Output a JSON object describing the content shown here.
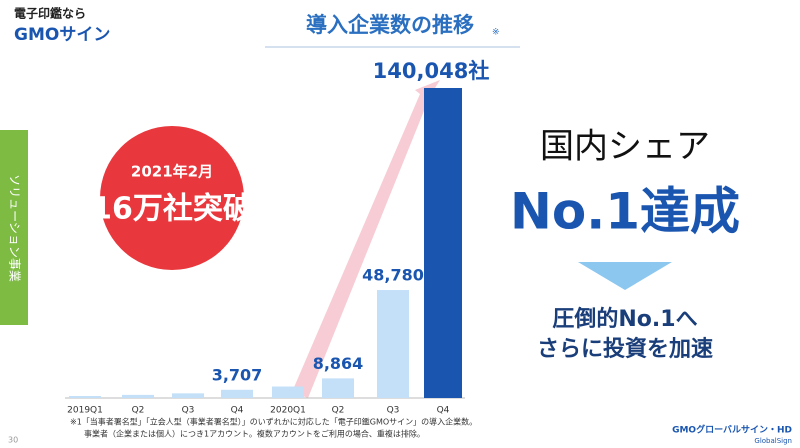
{
  "header": {
    "tagline": "電子印鑑なら",
    "logo": "GMOサイン"
  },
  "side_tab": "ソリューション事業",
  "badge": {
    "date": "2021年2月",
    "headline": "16万社突破"
  },
  "message": {
    "line1": "国内シェア",
    "line2": "No.1達成",
    "line3": "圧倒的No.1へ",
    "line4": "さらに投資を加速"
  },
  "chart_data": {
    "type": "bar",
    "title": "導入企業数の推移",
    "title_note": "※",
    "categories": [
      "2019Q1",
      "Q2",
      "Q3",
      "Q4",
      "2020Q1",
      "Q2",
      "Q3",
      "Q4"
    ],
    "values": [
      900,
      1400,
      2100,
      3707,
      5200,
      8864,
      48780,
      140048
    ],
    "value_labels": [
      null,
      null,
      null,
      "3,707",
      null,
      "8,864",
      "48,780",
      "140,048社"
    ],
    "colors": [
      "#c4e0f8",
      "#c4e0f8",
      "#c4e0f8",
      "#c4e0f8",
      "#c4e0f8",
      "#c4e0f8",
      "#c4e0f8",
      "#1a56b0"
    ]
  },
  "footnotes": [
    "※1「当事者署名型」「立会人型（事業者署名型）」のいずれかに対応した「電子印鑑GMOサイン」の導入企業数。",
    "事業者（企業または個人）につき1アカウント。複数アカウントをご利用の場合、重複は排除。"
  ],
  "page_number": "30",
  "footer": {
    "company": "GMOグローバルサイン・HD",
    "brand": "GlobalSign"
  }
}
